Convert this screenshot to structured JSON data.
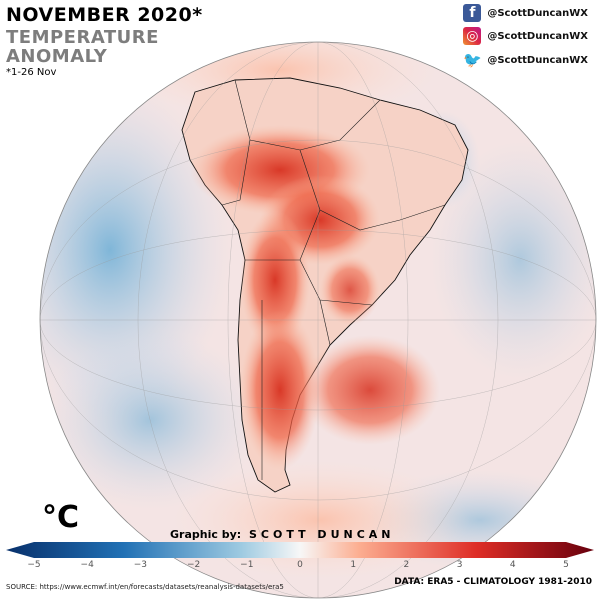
{
  "header": {
    "title": "NOVEMBER 2020*",
    "subtitle_line1": "TEMPERATURE",
    "subtitle_line2": "ANOMALY",
    "date_note": "*1-26 Nov"
  },
  "social": [
    {
      "network": "facebook",
      "icon": "facebook-icon",
      "handle": "@ScottDuncanWX",
      "color": "#3b5998",
      "glyph": "f"
    },
    {
      "network": "instagram",
      "icon": "instagram-icon",
      "handle": "@ScottDuncanWX",
      "color": "#c13584",
      "glyph": "◎"
    },
    {
      "network": "twitter",
      "icon": "twitter-icon",
      "handle": "@ScottDuncanWX",
      "color": "#1da1f2",
      "glyph": "🐦"
    }
  ],
  "colorbar": {
    "unit": "°C",
    "min": -5,
    "max": 5,
    "ticks": [
      "−5",
      "−4",
      "−3",
      "−2",
      "−1",
      "0",
      "1",
      "2",
      "3",
      "4",
      "5"
    ],
    "cold_color": "#08306b",
    "neutral_color": "#f7f7f7",
    "warm_color": "#67000d"
  },
  "credit": {
    "prefix": "Graphic by:",
    "name": "SCOTT DUNCAN"
  },
  "footer": {
    "source": "SOURCE: https://www.ecmwf.int/en/forecasts/datasets/reanalysis-datasets/era5",
    "data": "DATA: ERA5 - CLIMATOLOGY 1981-2010"
  }
}
